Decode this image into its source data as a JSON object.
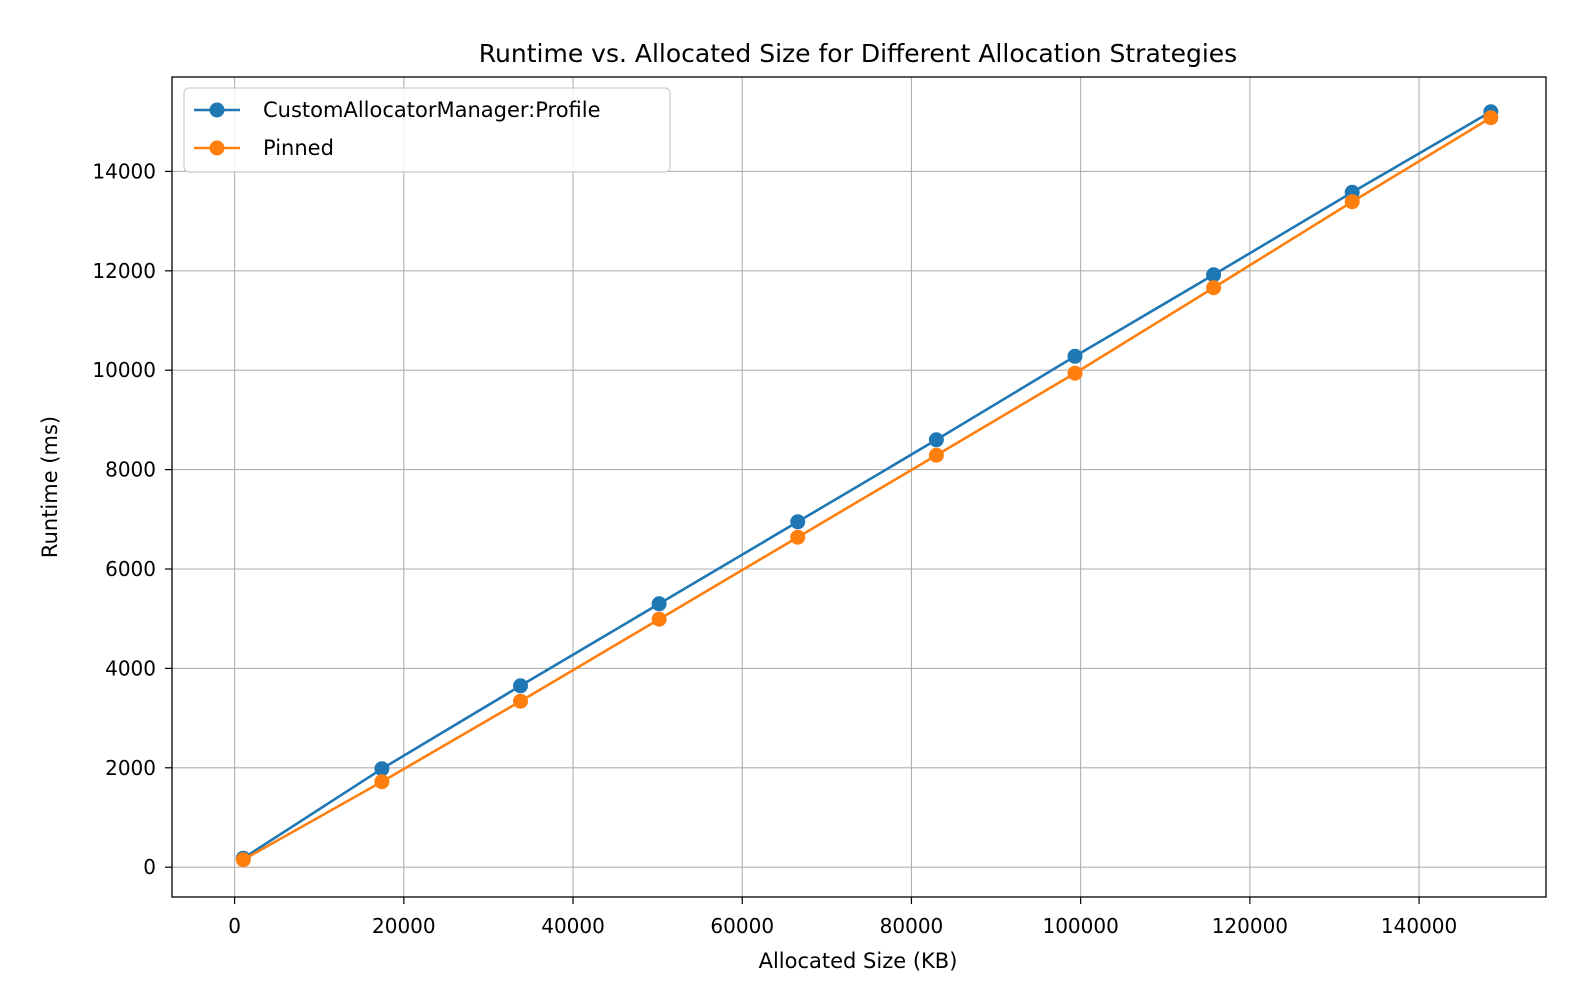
{
  "chart_data": {
    "type": "line",
    "title": "Runtime vs. Allocated Size for Different Allocation Strategies",
    "xlabel": "Allocated Size (KB)",
    "ylabel": "Runtime (ms)",
    "xlim": [
      -7400,
      155000
    ],
    "ylim": [
      -600,
      15900
    ],
    "xticks": [
      0,
      20000,
      40000,
      60000,
      80000,
      100000,
      120000,
      140000
    ],
    "yticks": [
      0,
      2000,
      4000,
      6000,
      8000,
      10000,
      12000,
      14000
    ],
    "grid": true,
    "legend_position": "top-left",
    "series": [
      {
        "name": "CustomAllocatorManager:Profile",
        "color": "#1f77b4",
        "marker": "circle",
        "x": [
          1024,
          17408,
          33792,
          50176,
          66560,
          82944,
          99328,
          115712,
          132096,
          148480
        ],
        "values": [
          180,
          1980,
          3650,
          5300,
          6950,
          8600,
          10280,
          11920,
          13580,
          15200
        ]
      },
      {
        "name": "Pinned",
        "color": "#ff7f0e",
        "marker": "circle",
        "x": [
          1024,
          17408,
          33792,
          50176,
          66560,
          82944,
          99328,
          115712,
          132096,
          148480
        ],
        "values": [
          150,
          1720,
          3340,
          4990,
          6640,
          8290,
          9940,
          11660,
          13390,
          15080
        ]
      }
    ]
  }
}
